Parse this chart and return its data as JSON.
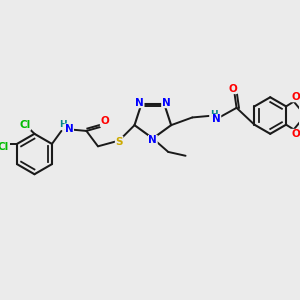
{
  "background_color": "#ebebeb",
  "bond_color": "#1a1a1a",
  "atom_colors": {
    "N": "#0000ff",
    "O": "#ff0000",
    "S": "#ccaa00",
    "Cl": "#00bb00",
    "H": "#008888",
    "C_label": "#1a1a1a"
  },
  "figsize": [
    3.0,
    3.0
  ],
  "dpi": 100
}
